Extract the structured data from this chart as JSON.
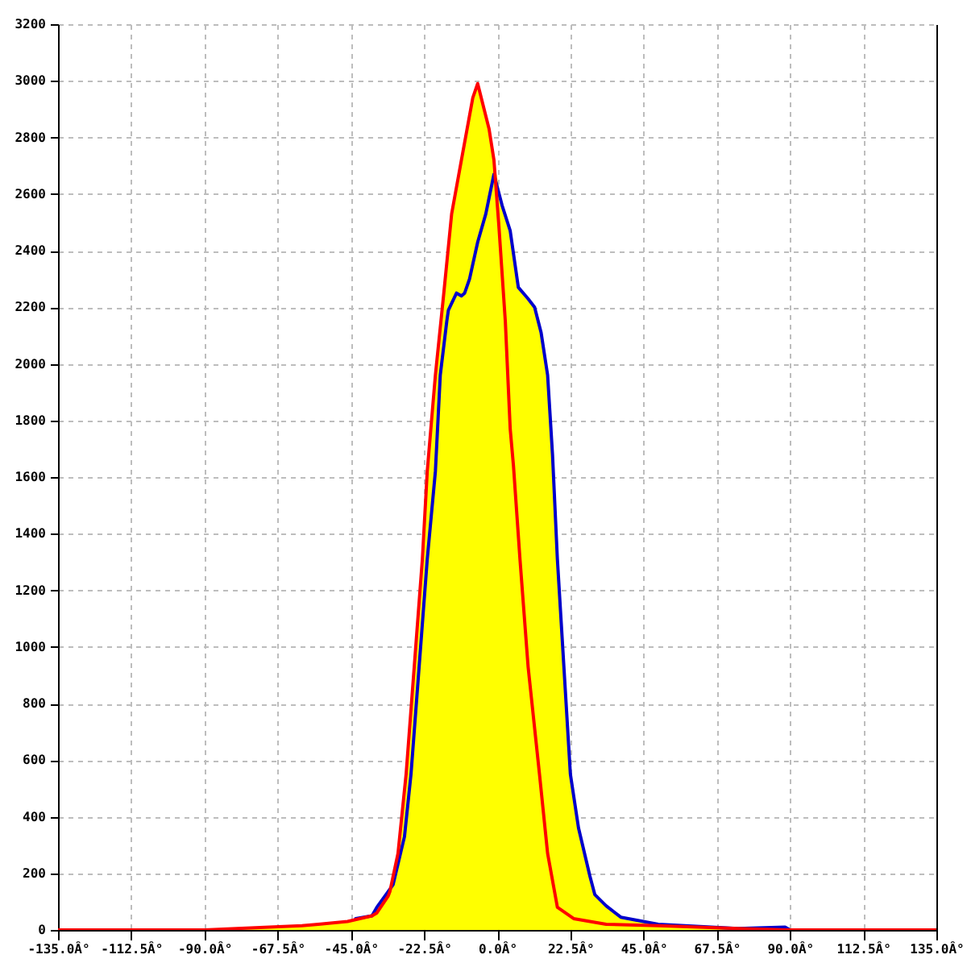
{
  "chart_data": {
    "type": "line",
    "xlim": [
      -135,
      135
    ],
    "xticks": [
      {
        "value": -135,
        "label": "-135.0Â°"
      },
      {
        "value": -112.5,
        "label": "-112.5Â°"
      },
      {
        "value": -90,
        "label": "-90.0Â°"
      },
      {
        "value": -67.5,
        "label": "-67.5Â°"
      },
      {
        "value": -45,
        "label": "-45.0Â°"
      },
      {
        "value": -22.5,
        "label": "-22.5Â°"
      },
      {
        "value": 0,
        "label": "0.0Â°"
      },
      {
        "value": 22.5,
        "label": "22.5Â°"
      },
      {
        "value": 45,
        "label": "45.0Â°"
      },
      {
        "value": 67.5,
        "label": "67.5Â°"
      },
      {
        "value": 90,
        "label": "90.0Â°"
      },
      {
        "value": 112.5,
        "label": "112.5Â°"
      },
      {
        "value": 135,
        "label": "135.0Â°"
      }
    ],
    "ylim": [
      0,
      3200
    ],
    "yticks": [
      0,
      200,
      400,
      600,
      800,
      1000,
      1200,
      1400,
      1600,
      1800,
      2000,
      2200,
      2400,
      2600,
      2800,
      3000,
      3200
    ],
    "grid": true,
    "series": [
      {
        "type": "area",
        "color": "#ffff00",
        "x": [
          -90,
          -80,
          -70,
          -60,
          -55,
          -46,
          -43.5,
          -38.5,
          -37,
          -33,
          -30.5,
          -28,
          -25.5,
          -23,
          -21.5,
          -19,
          -16.5,
          -14,
          -11,
          -7.5,
          -6,
          -2.5,
          -1,
          1.5,
          4,
          6.5,
          9.5,
          11.5,
          13.5,
          15.5,
          17,
          18.5,
          20.5,
          22.5,
          25,
          28.5,
          30,
          33.5,
          38,
          49.5,
          74,
          88.5,
          90
        ],
        "values": [
          0,
          5,
          10,
          15,
          20,
          30,
          40,
          50,
          80,
          135,
          270,
          550,
          930,
          1310,
          1620,
          1960,
          2240,
          2530,
          2720,
          2940,
          2990,
          2830,
          2720,
          2560,
          2470,
          2270,
          2230,
          2200,
          2110,
          1960,
          1680,
          1310,
          930,
          550,
          360,
          190,
          125,
          85,
          45,
          20,
          6,
          10,
          0
        ]
      },
      {
        "color": "#0000cc",
        "x": [
          -43.5,
          -38.5,
          -37,
          -32,
          -28.5,
          -26.5,
          -24,
          -21.5,
          -19,
          -17.5,
          -15.5,
          -15,
          -12.5,
          -11,
          -10,
          -8.5,
          -6,
          -3.5,
          -1,
          1.5,
          4,
          6.5,
          9.5,
          11.5,
          13.5,
          15.5,
          17,
          18.5,
          20.5,
          22.5,
          25,
          28.5,
          30,
          33.5,
          38,
          49.5,
          74,
          88.5,
          90
        ],
        "values": [
          40,
          50,
          80,
          160,
          330,
          550,
          930,
          1310,
          1620,
          1960,
          2150,
          2190,
          2250,
          2240,
          2250,
          2300,
          2430,
          2530,
          2670,
          2560,
          2470,
          2270,
          2230,
          2200,
          2110,
          1960,
          1680,
          1310,
          930,
          550,
          360,
          190,
          125,
          85,
          45,
          20,
          5,
          10,
          0
        ]
      },
      {
        "color": "#ff0000",
        "x": [
          -135,
          -90,
          -80,
          -70,
          -60,
          -55,
          -46,
          -38.5,
          -37,
          -33.5,
          -33,
          -30.5,
          -28,
          -25.5,
          -23,
          -21.5,
          -19,
          -16.5,
          -14,
          -11,
          -7.5,
          -6,
          -2.5,
          -1,
          0.5,
          2.5,
          4,
          5,
          7,
          9.5,
          13,
          15.5,
          18.5,
          23.5,
          33.5,
          49.5,
          74,
          89,
          135
        ],
        "values": [
          0,
          0,
          5,
          10,
          15,
          20,
          30,
          50,
          60,
          120,
          135,
          270,
          550,
          930,
          1310,
          1620,
          1960,
          2240,
          2530,
          2720,
          2940,
          2990,
          2830,
          2720,
          2490,
          2150,
          1770,
          1640,
          1310,
          930,
          550,
          270,
          80,
          40,
          20,
          15,
          5,
          0,
          0
        ]
      }
    ]
  }
}
